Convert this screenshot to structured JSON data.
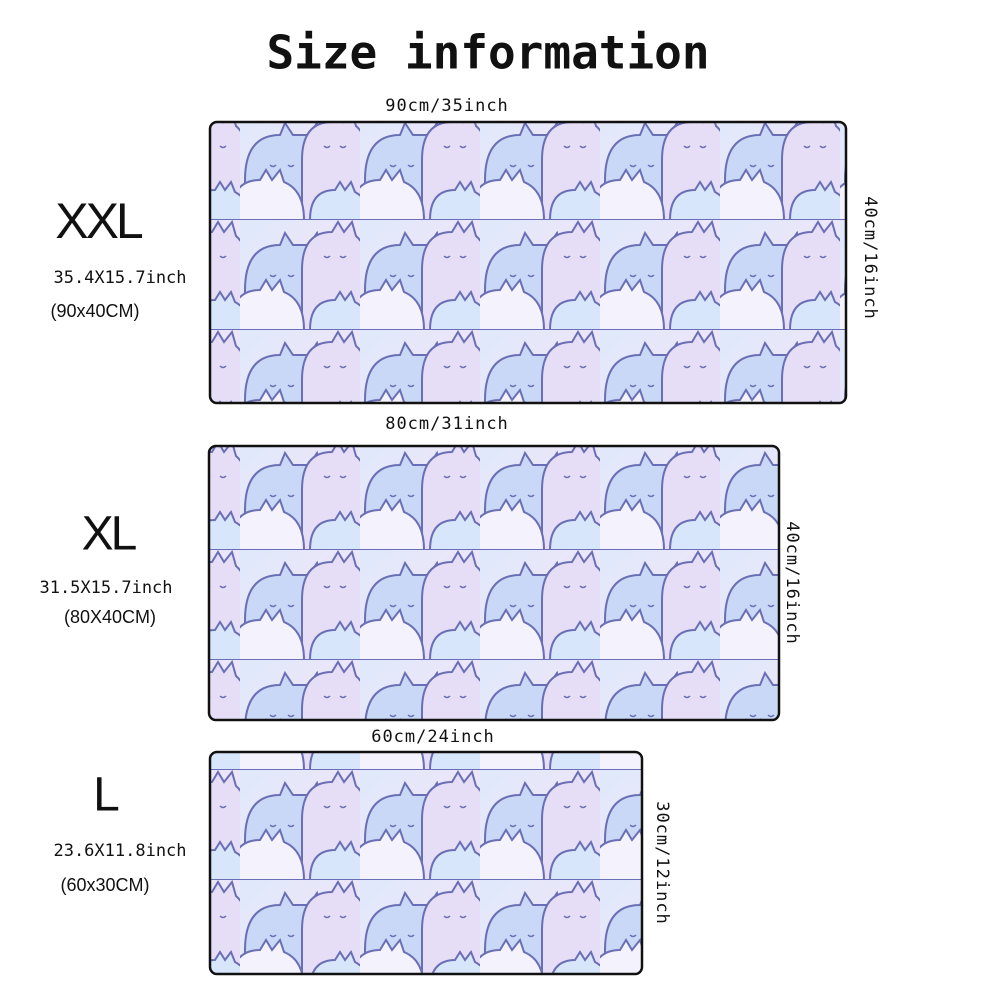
{
  "header": {
    "title": "Size information"
  },
  "sizes": [
    {
      "name": "XXL",
      "dimensions": "35.4X15.7inch",
      "metric": "(90x40CM)",
      "width_label": "90cm/35inch",
      "height_label": "40cm/16inch"
    },
    {
      "name": "XL",
      "dimensions": "31.5X15.7inch",
      "metric": "(80X40CM)",
      "width_label": "80cm/31inch",
      "height_label": "40cm/16inch"
    },
    {
      "name": "L",
      "dimensions": "23.6X11.8inch",
      "metric": "(60x30CM)",
      "width_label": "60cm/24inch",
      "height_label": "30cm/12inch"
    }
  ]
}
